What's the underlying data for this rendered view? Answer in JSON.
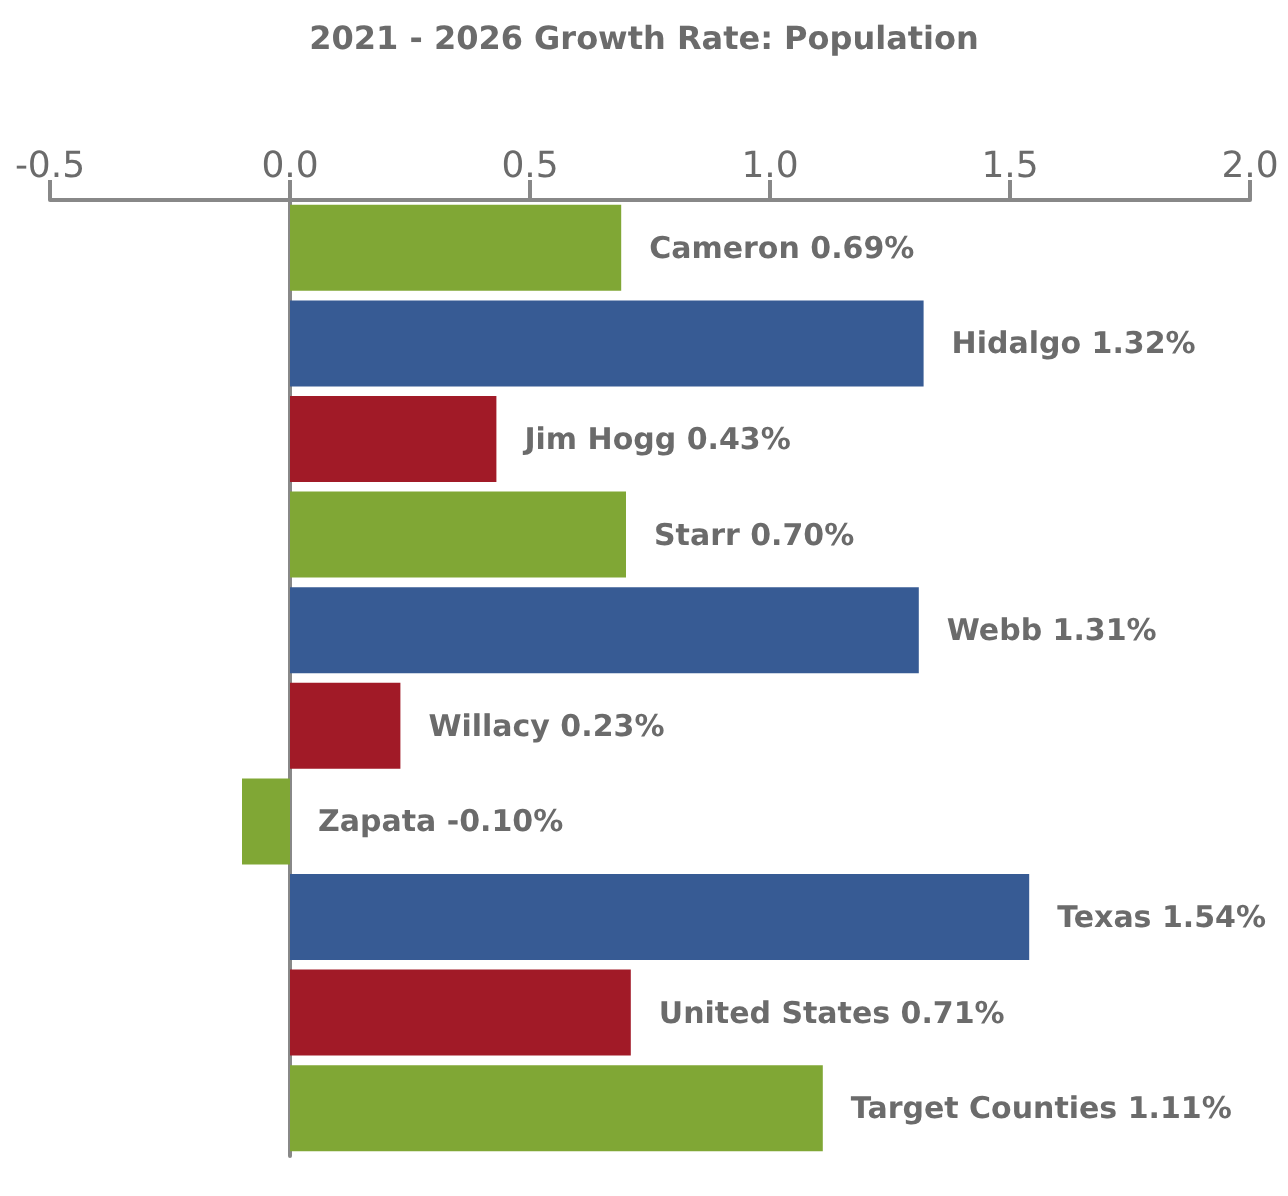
{
  "chart_data": {
    "type": "bar",
    "orientation": "horizontal",
    "title": "2021 - 2026 Growth Rate: Population",
    "categories": [
      "Cameron",
      "Hidalgo",
      "Jim Hogg",
      "Starr",
      "Webb",
      "Willacy",
      "Zapata",
      "Texas",
      "United States",
      "Target Counties"
    ],
    "values": [
      0.69,
      1.32,
      0.43,
      0.7,
      1.31,
      0.23,
      -0.1,
      1.54,
      0.71,
      1.11
    ],
    "colors": [
      "#80a735",
      "#375b94",
      "#a11a27",
      "#80a735",
      "#375b94",
      "#a11a27",
      "#80a735",
      "#375b94",
      "#a11a27",
      "#80a735"
    ],
    "value_labels": [
      "0.69%",
      "1.32%",
      "0.43%",
      "0.70%",
      "1.31%",
      "0.23%",
      "-0.10%",
      "1.54%",
      "0.71%",
      "1.11%"
    ],
    "xlim": [
      -0.5,
      2.0
    ],
    "xticks": [
      -0.5,
      {
        "value": 0,
        "label": "0.0"
      },
      0.5,
      {
        "value": 1,
        "label": "1.0"
      },
      1.5,
      {
        "value": 2,
        "label": "2.0"
      }
    ]
  }
}
